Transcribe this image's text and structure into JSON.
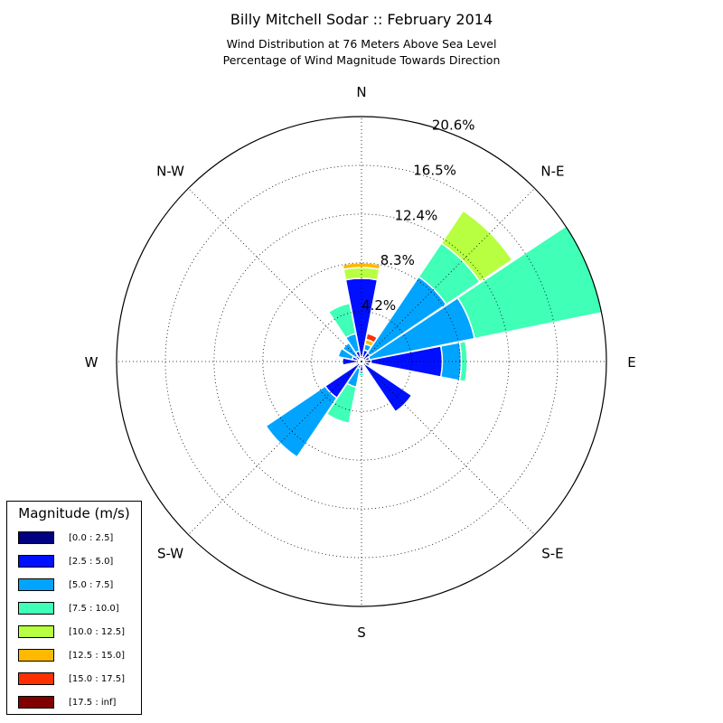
{
  "title": "Billy Mitchell Sodar :: February 2014",
  "subtitle_line1": "Wind Distribution at 76 Meters Above Sea Level",
  "subtitle_line2": "Percentage of Wind Magnitude Towards Direction",
  "chart_data": {
    "type": "polar-stacked-bar",
    "title": "Billy Mitchell Sodar :: February 2014",
    "radial_ticks": [
      4.2,
      8.3,
      12.4,
      16.5,
      20.6
    ],
    "radial_tick_labels": [
      "4.2%",
      "8.3%",
      "12.4%",
      "16.5%",
      "20.6%"
    ],
    "r_max": 20.6,
    "direction_labels": [
      {
        "label": "N",
        "angle": 0
      },
      {
        "label": "N-E",
        "angle": 45
      },
      {
        "label": "E",
        "angle": 90
      },
      {
        "label": "S-E",
        "angle": 135
      },
      {
        "label": "S",
        "angle": 180
      },
      {
        "label": "S-W",
        "angle": 225
      },
      {
        "label": "W",
        "angle": 270
      },
      {
        "label": "N-W",
        "angle": 315
      }
    ],
    "legend_title": "Magnitude (m/s)",
    "bins": [
      {
        "label": "[0.0 : 2.5]",
        "color": "#000080"
      },
      {
        "label": "[2.5 : 5.0]",
        "color": "#0010ff"
      },
      {
        "label": "[5.0 : 7.5]",
        "color": "#00a4ff"
      },
      {
        "label": "[7.5 : 10.0]",
        "color": "#40ffb7"
      },
      {
        "label": "[10.0 : 12.5]",
        "color": "#b7ff40"
      },
      {
        "label": "[12.5 : 15.0]",
        "color": "#ffb900"
      },
      {
        "label": "[15.0 : 17.5]",
        "color": "#ff3000"
      },
      {
        "label": "[17.5 : inf]",
        "color": "#800000"
      }
    ],
    "directions": [
      {
        "angle": 0,
        "values": [
          0.4,
          6.6,
          0,
          0,
          0.9,
          0.4,
          0,
          0
        ]
      },
      {
        "angle": 22.5,
        "values": [
          0.2,
          0.8,
          0.5,
          0,
          0,
          0.4,
          0.5,
          0
        ]
      },
      {
        "angle": 45,
        "values": [
          0.3,
          0.6,
          7.7,
          3.4,
          3.3,
          0,
          0,
          0
        ]
      },
      {
        "angle": 67.5,
        "values": [
          0.3,
          0.4,
          9.0,
          11.0,
          0,
          0,
          0,
          0
        ]
      },
      {
        "angle": 90,
        "values": [
          0.8,
          6.0,
          1.6,
          0.5,
          0,
          0,
          0,
          0
        ]
      },
      {
        "angle": 112.5,
        "values": [
          0.3,
          0.4,
          0,
          0,
          0,
          0,
          0,
          0
        ]
      },
      {
        "angle": 135,
        "values": [
          0.4,
          4.7,
          0,
          0,
          0,
          0,
          0,
          0
        ]
      },
      {
        "angle": 157.5,
        "values": [
          0.3,
          0,
          0,
          0,
          0,
          0,
          0,
          0
        ]
      },
      {
        "angle": 180,
        "values": [
          0.2,
          0.6,
          0.2,
          0.2,
          0,
          0,
          0,
          0
        ]
      },
      {
        "angle": 202.5,
        "values": [
          0.3,
          0.3,
          1.6,
          3.1,
          0,
          0,
          0,
          0
        ]
      },
      {
        "angle": 225,
        "values": [
          0.3,
          3.4,
          6.0,
          0,
          0,
          0,
          0,
          0
        ]
      },
      {
        "angle": 247.5,
        "values": [
          0.2,
          0.3,
          0,
          0,
          0,
          0,
          0,
          0
        ]
      },
      {
        "angle": 270,
        "values": [
          0.3,
          1.3,
          0,
          0,
          0,
          0,
          0,
          0
        ]
      },
      {
        "angle": 292.5,
        "values": [
          0.3,
          0.5,
          1.2,
          0,
          0,
          0,
          0,
          0
        ]
      },
      {
        "angle": 315,
        "values": [
          0.3,
          0.3,
          1.3,
          0,
          0,
          0,
          0,
          0
        ]
      },
      {
        "angle": 337.5,
        "values": [
          0.3,
          0.6,
          1.5,
          2.6,
          0,
          0,
          0,
          0
        ]
      }
    ]
  }
}
